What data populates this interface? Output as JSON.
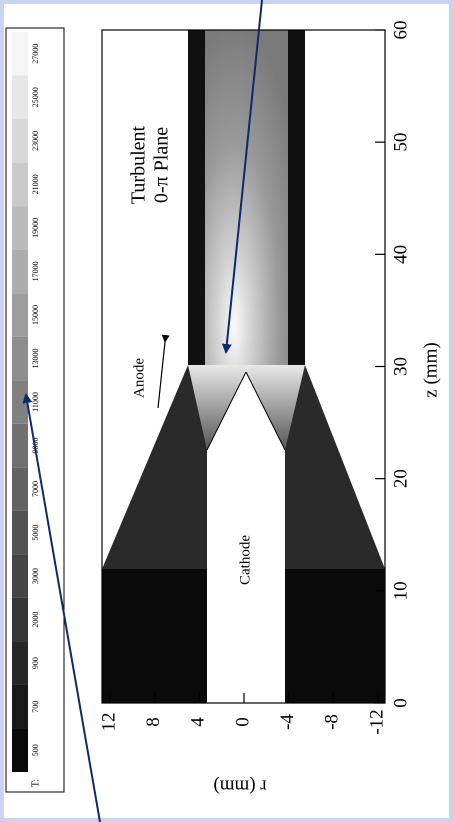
{
  "chart_data": {
    "type": "contour",
    "title": "Turbulent",
    "subtitle": "0-π Plane",
    "annotations": [
      "Anode",
      "Cathode"
    ],
    "x_label": "z (mm)",
    "y_label": "r (mm)",
    "xlim": [
      0,
      60
    ],
    "xticks": [
      0,
      10,
      20,
      30,
      40,
      50,
      60
    ],
    "ylim": [
      12,
      -12
    ],
    "yticks": [
      12,
      8,
      4,
      0,
      -4,
      -8,
      -12
    ],
    "colorbar": {
      "label": "T:",
      "levels": [
        500,
        700,
        900,
        2000,
        3000,
        5000,
        7000,
        9000,
        11000,
        13000,
        15000,
        17000,
        19000,
        21000,
        23000,
        25000,
        27000
      ]
    }
  }
}
